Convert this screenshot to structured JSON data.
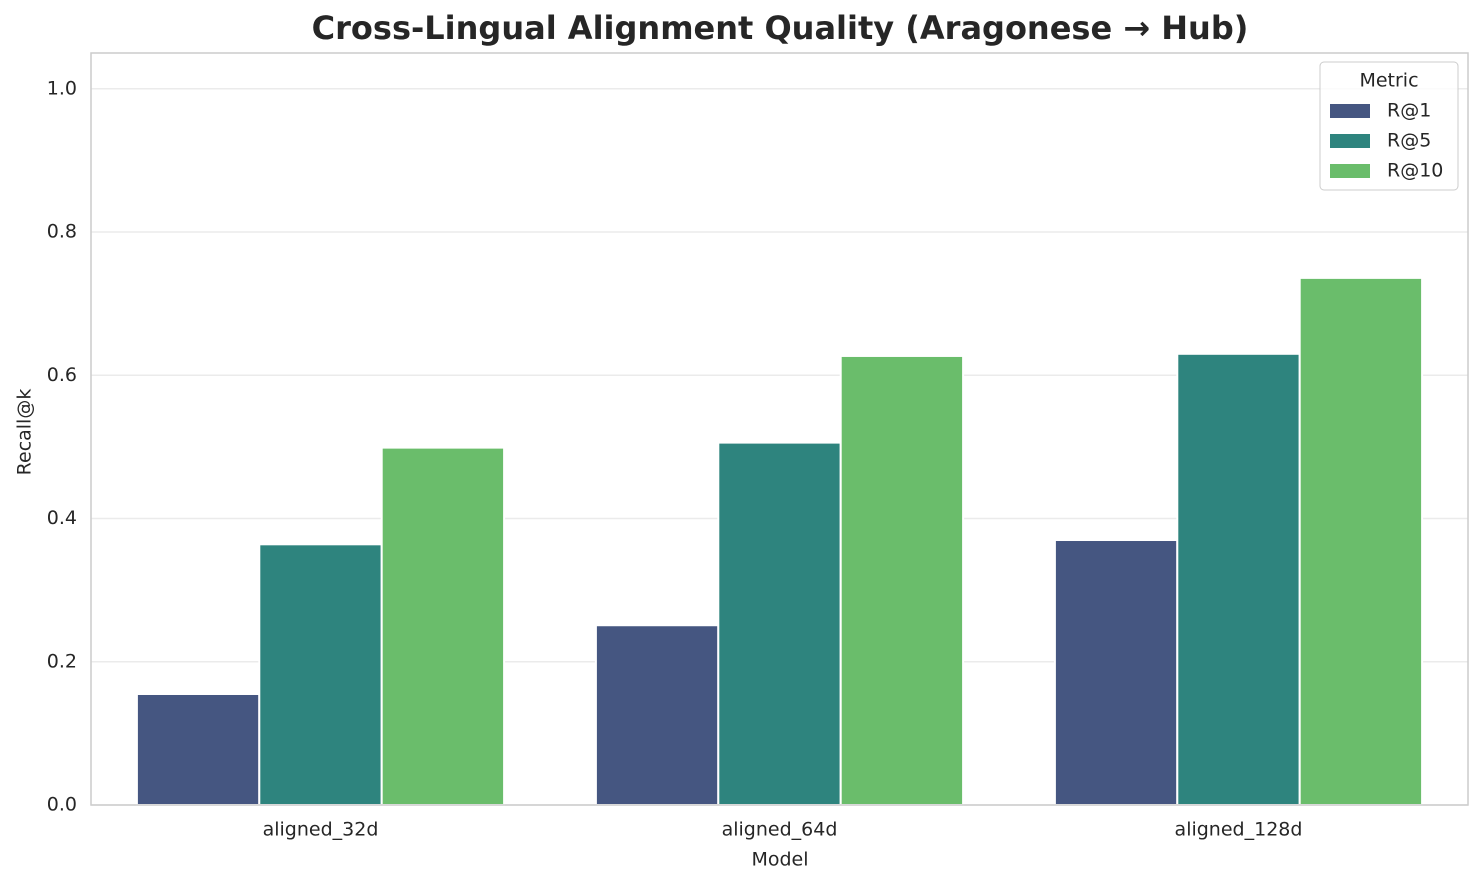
{
  "chart_data": {
    "type": "bar",
    "title": "Cross-Lingual Alignment Quality (Aragonese → Hub)",
    "x_label": "Model",
    "y_label": "Recall@k",
    "categories": [
      "aligned_32d",
      "aligned_64d",
      "aligned_128d"
    ],
    "series": [
      {
        "name": "R@1",
        "color": "#455681",
        "values": [
          0.155,
          0.251,
          0.37
        ]
      },
      {
        "name": "R@5",
        "color": "#2e847e",
        "values": [
          0.364,
          0.506,
          0.63
        ]
      },
      {
        "name": "R@10",
        "color": "#6abd6b",
        "values": [
          0.499,
          0.627,
          0.736
        ]
      }
    ],
    "ylim": [
      0,
      1.05
    ],
    "yticks": [
      {
        "value": 0,
        "label": "0.0"
      },
      0.2,
      0.4,
      0.6,
      0.8,
      {
        "value": 1,
        "label": "1.0"
      }
    ],
    "grid": true,
    "legend_title": "Metric",
    "legend_position": "upper right"
  }
}
